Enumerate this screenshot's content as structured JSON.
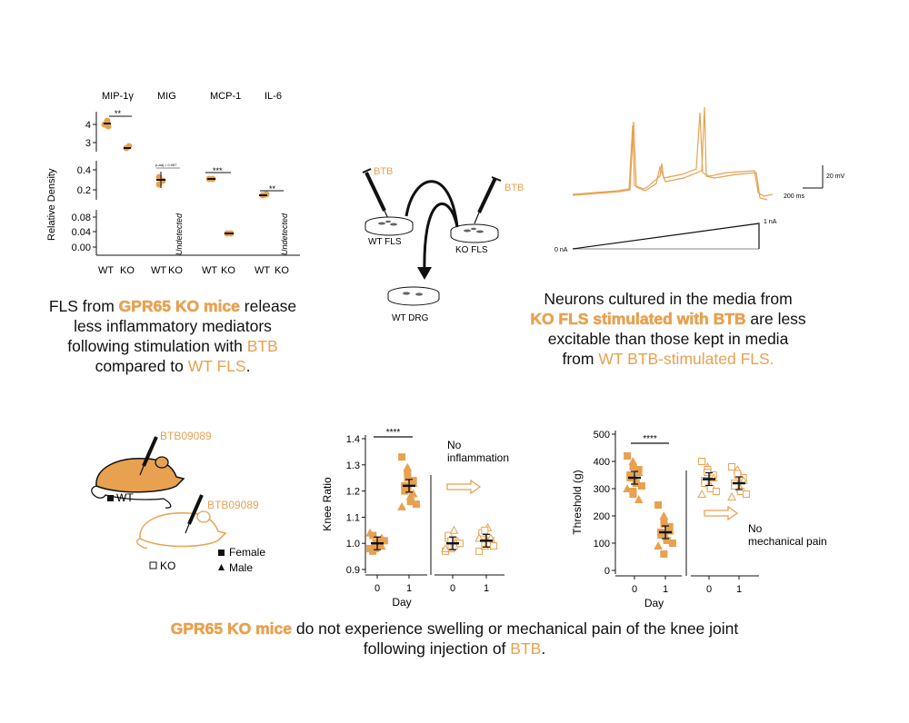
{
  "colors": {
    "accent": "#e8a150",
    "black": "#111111"
  },
  "panel_a": {
    "analytes": [
      "MIP-1γ",
      "MIG",
      "MCP-1",
      "IL-6"
    ],
    "ylabel": "Relative Density",
    "y_ticks": [
      "4",
      "3",
      "0.4",
      "0.2",
      "0.08",
      "0.04",
      "0.00"
    ],
    "group_labels": [
      "WT",
      "KO"
    ],
    "sig": {
      "mip": "**",
      "mig": "p-adj = 0.057",
      "mcp": "***",
      "il6": "**"
    },
    "undetected": "Undetected"
  },
  "caption_a": {
    "l1a": "FLS from ",
    "l1b": "GPR65 KO mice",
    "l1c": " release",
    "l2": "less inflammatory mediators",
    "l3a": "following stimulation with ",
    "l3b": "BTB",
    "l4a": "compared to ",
    "l4b": "WT FLS",
    "l4c": "."
  },
  "panel_b": {
    "btb_left": "BTB",
    "btb_right": "BTB",
    "wt_fls": "WT FLS",
    "ko_fls": "KO FLS",
    "wt_drg": "WT DRG"
  },
  "panel_c": {
    "scale_mv": "20 mV",
    "scale_ms": "200 ms",
    "ramp_top": "1 nA",
    "ramp_zero": "0 nA"
  },
  "caption_c": {
    "l1": "Neurons cultured in the media from",
    "l2a": "KO FLS stimulated with BTB",
    "l2b": " are less",
    "l3": "excitable than those kept in media",
    "l4a": "from ",
    "l4b": "WT BTB-stimulated FLS."
  },
  "mice": {
    "btb_top": "BTB09089",
    "btb_bottom": "BTB09089",
    "wt": "WT",
    "ko": "KO",
    "female": "Female",
    "male": "Male"
  },
  "knee": {
    "ylabel": "Knee Ratio",
    "xlabel": "Day",
    "sig": "****",
    "annot1": "No",
    "annot2": "inflammation",
    "y_ticks": [
      "1.4",
      "1.3",
      "1.2",
      "1.1",
      "1.0",
      "0.9"
    ],
    "x_ticks": [
      "0",
      "1",
      "0",
      "1"
    ]
  },
  "thresh": {
    "ylabel": "Threshold (g)",
    "xlabel": "Day",
    "sig": "****",
    "annot1": "No",
    "annot2": "mechanical pain",
    "y_ticks": [
      "500",
      "400",
      "300",
      "200",
      "100",
      "0"
    ],
    "x_ticks": [
      "0",
      "1",
      "0",
      "1"
    ]
  },
  "caption_bottom": {
    "l1a": "GPR65 KO mice",
    "l1b": " do not experience swelling or mechanical pain of the knee joint",
    "l2a": "following injection of ",
    "l2b": "BTB",
    "l2c": "."
  },
  "chart_data": [
    {
      "type": "scatter",
      "ylabel": "Knee Ratio",
      "xlabel": "Day",
      "ylim": [
        0.9,
        1.4
      ],
      "groups": [
        {
          "genotype": "WT",
          "day": "0",
          "mean": 1.0,
          "values": [
            0.98,
            0.99,
            1.0,
            1.01,
            1.02,
            0.97,
            1.03,
            0.99,
            1.0,
            1.01,
            1.04,
            0.98,
            1.0,
            0.99
          ]
        },
        {
          "genotype": "WT",
          "day": "1",
          "mean": 1.22,
          "values": [
            1.33,
            1.29,
            1.25,
            1.24,
            1.23,
            1.22,
            1.2,
            1.18,
            1.16,
            1.15,
            1.14,
            1.27,
            1.21,
            1.19
          ]
        },
        {
          "genotype": "KO",
          "day": "0",
          "mean": 1.0,
          "values": [
            0.97,
            0.98,
            0.99,
            1.0,
            1.01,
            1.02,
            1.03,
            1.05,
            0.99,
            1.0,
            0.98,
            1.01
          ]
        },
        {
          "genotype": "KO",
          "day": "1",
          "mean": 1.01,
          "values": [
            0.97,
            0.99,
            1.0,
            1.01,
            1.02,
            1.03,
            1.04,
            1.06,
            1.0,
            0.99,
            1.02,
            1.05
          ]
        }
      ]
    },
    {
      "type": "scatter",
      "ylabel": "Threshold (g)",
      "xlabel": "Day",
      "ylim": [
        0,
        500
      ],
      "groups": [
        {
          "genotype": "WT",
          "day": "0",
          "mean": 340,
          "values": [
            420,
            400,
            380,
            370,
            360,
            350,
            340,
            330,
            320,
            310,
            300,
            290,
            280,
            260
          ]
        },
        {
          "genotype": "WT",
          "day": "1",
          "mean": 140,
          "values": [
            240,
            200,
            180,
            160,
            150,
            140,
            130,
            120,
            110,
            100,
            90,
            60,
            170,
            145
          ]
        },
        {
          "genotype": "KO",
          "day": "0",
          "mean": 335,
          "values": [
            400,
            380,
            370,
            350,
            340,
            330,
            320,
            310,
            300,
            290,
            280,
            360
          ]
        },
        {
          "genotype": "KO",
          "day": "1",
          "mean": 320,
          "values": [
            380,
            370,
            350,
            340,
            330,
            320,
            310,
            300,
            290,
            280,
            270,
            355
          ]
        }
      ]
    }
  ]
}
